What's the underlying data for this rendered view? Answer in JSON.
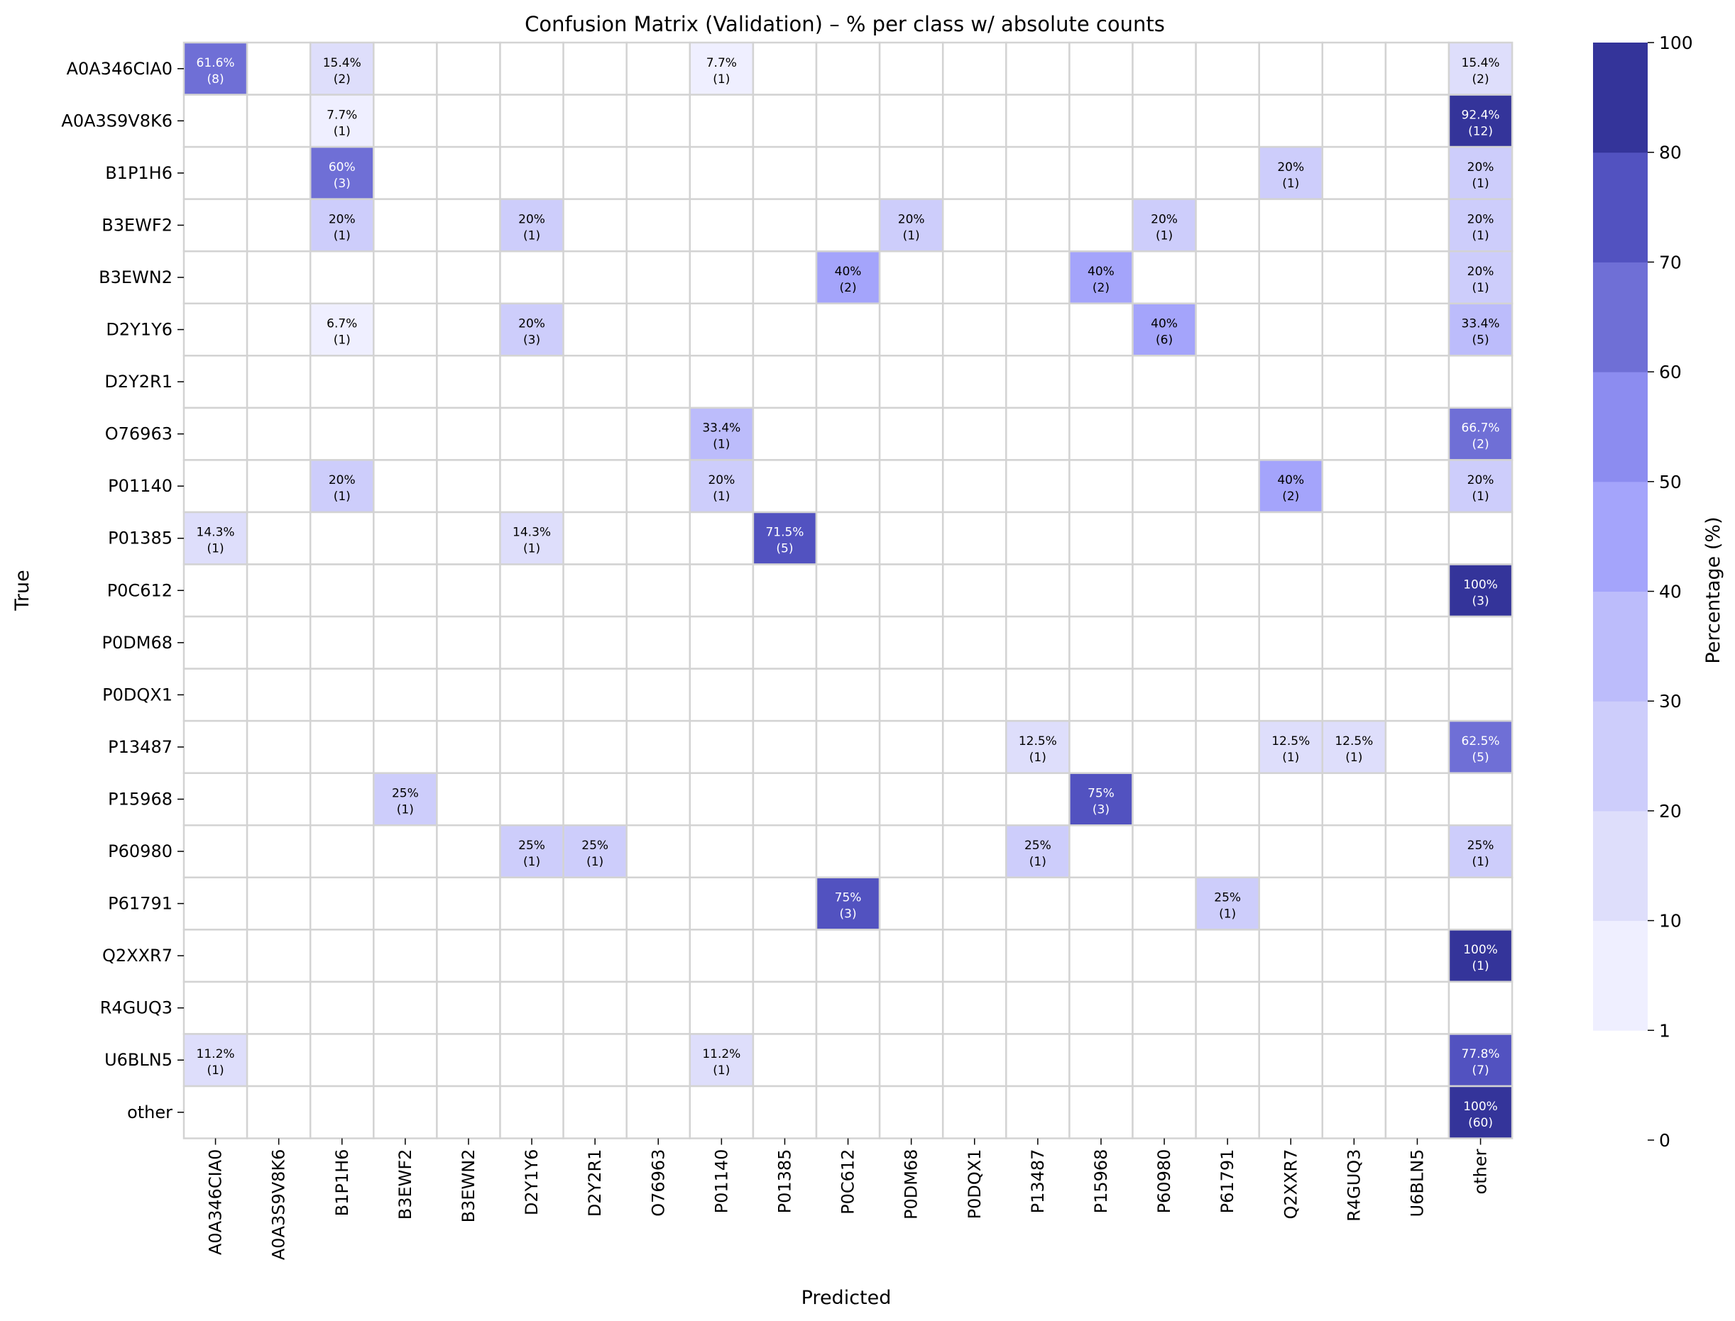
{
  "chart_data": {
    "type": "heatmap",
    "title": "Confusion Matrix (Validation) – % per class w/ absolute counts",
    "xlabel": "Predicted",
    "ylabel": "True",
    "x_categories": [
      "A0A346CIA0",
      "A0A3S9V8K6",
      "B1P1H6",
      "B3EWF2",
      "B3EWN2",
      "D2Y1Y6",
      "D2Y2R1",
      "O76963",
      "P01140",
      "P01385",
      "P0C612",
      "P0DM68",
      "P0DQX1",
      "P13487",
      "P15968",
      "P60980",
      "P61791",
      "Q2XXR7",
      "R4GUQ3",
      "U6BLN5",
      "other"
    ],
    "y_categories": [
      "A0A346CIA0",
      "A0A3S9V8K6",
      "B1P1H6",
      "B3EWF2",
      "B3EWN2",
      "D2Y1Y6",
      "D2Y2R1",
      "O76963",
      "P01140",
      "P01385",
      "P0C612",
      "P0DM68",
      "P0DQX1",
      "P13487",
      "P15968",
      "P60980",
      "P61791",
      "Q2XXR7",
      "R4GUQ3",
      "U6BLN5",
      "other"
    ],
    "cells": [
      {
        "row": "A0A346CIA0",
        "col": "A0A346CIA0",
        "pct": 61.6,
        "pct_label": "61.6%",
        "count_label": "(8)"
      },
      {
        "row": "A0A346CIA0",
        "col": "B1P1H6",
        "pct": 15.4,
        "pct_label": "15.4%",
        "count_label": "(2)"
      },
      {
        "row": "A0A346CIA0",
        "col": "P01140",
        "pct": 7.7,
        "pct_label": "7.7%",
        "count_label": "(1)"
      },
      {
        "row": "A0A346CIA0",
        "col": "other",
        "pct": 15.4,
        "pct_label": "15.4%",
        "count_label": "(2)"
      },
      {
        "row": "A0A3S9V8K6",
        "col": "B1P1H6",
        "pct": 7.7,
        "pct_label": "7.7%",
        "count_label": "(1)"
      },
      {
        "row": "A0A3S9V8K6",
        "col": "other",
        "pct": 92.4,
        "pct_label": "92.4%",
        "count_label": "(12)"
      },
      {
        "row": "B1P1H6",
        "col": "B1P1H6",
        "pct": 60,
        "pct_label": "60%",
        "count_label": "(3)"
      },
      {
        "row": "B1P1H6",
        "col": "Q2XXR7",
        "pct": 20,
        "pct_label": "20%",
        "count_label": "(1)"
      },
      {
        "row": "B1P1H6",
        "col": "other",
        "pct": 20,
        "pct_label": "20%",
        "count_label": "(1)"
      },
      {
        "row": "B3EWF2",
        "col": "B1P1H6",
        "pct": 20,
        "pct_label": "20%",
        "count_label": "(1)"
      },
      {
        "row": "B3EWF2",
        "col": "D2Y1Y6",
        "pct": 20,
        "pct_label": "20%",
        "count_label": "(1)"
      },
      {
        "row": "B3EWF2",
        "col": "P0DM68",
        "pct": 20,
        "pct_label": "20%",
        "count_label": "(1)"
      },
      {
        "row": "B3EWF2",
        "col": "P60980",
        "pct": 20,
        "pct_label": "20%",
        "count_label": "(1)"
      },
      {
        "row": "B3EWF2",
        "col": "other",
        "pct": 20,
        "pct_label": "20%",
        "count_label": "(1)"
      },
      {
        "row": "B3EWN2",
        "col": "P0C612",
        "pct": 40,
        "pct_label": "40%",
        "count_label": "(2)"
      },
      {
        "row": "B3EWN2",
        "col": "P15968",
        "pct": 40,
        "pct_label": "40%",
        "count_label": "(2)"
      },
      {
        "row": "B3EWN2",
        "col": "other",
        "pct": 20,
        "pct_label": "20%",
        "count_label": "(1)"
      },
      {
        "row": "D2Y1Y6",
        "col": "B1P1H6",
        "pct": 6.7,
        "pct_label": "6.7%",
        "count_label": "(1)"
      },
      {
        "row": "D2Y1Y6",
        "col": "D2Y1Y6",
        "pct": 20,
        "pct_label": "20%",
        "count_label": "(3)"
      },
      {
        "row": "D2Y1Y6",
        "col": "P60980",
        "pct": 40,
        "pct_label": "40%",
        "count_label": "(6)"
      },
      {
        "row": "D2Y1Y6",
        "col": "other",
        "pct": 33.4,
        "pct_label": "33.4%",
        "count_label": "(5)"
      },
      {
        "row": "O76963",
        "col": "P01140",
        "pct": 33.4,
        "pct_label": "33.4%",
        "count_label": "(1)"
      },
      {
        "row": "O76963",
        "col": "other",
        "pct": 66.7,
        "pct_label": "66.7%",
        "count_label": "(2)"
      },
      {
        "row": "P01140",
        "col": "B1P1H6",
        "pct": 20,
        "pct_label": "20%",
        "count_label": "(1)"
      },
      {
        "row": "P01140",
        "col": "P01140",
        "pct": 20,
        "pct_label": "20%",
        "count_label": "(1)"
      },
      {
        "row": "P01140",
        "col": "Q2XXR7",
        "pct": 40,
        "pct_label": "40%",
        "count_label": "(2)"
      },
      {
        "row": "P01140",
        "col": "other",
        "pct": 20,
        "pct_label": "20%",
        "count_label": "(1)"
      },
      {
        "row": "P01385",
        "col": "A0A346CIA0",
        "pct": 14.3,
        "pct_label": "14.3%",
        "count_label": "(1)"
      },
      {
        "row": "P01385",
        "col": "D2Y1Y6",
        "pct": 14.3,
        "pct_label": "14.3%",
        "count_label": "(1)"
      },
      {
        "row": "P01385",
        "col": "P01385",
        "pct": 71.5,
        "pct_label": "71.5%",
        "count_label": "(5)"
      },
      {
        "row": "P0C612",
        "col": "other",
        "pct": 100,
        "pct_label": "100%",
        "count_label": "(3)"
      },
      {
        "row": "P13487",
        "col": "P13487",
        "pct": 12.5,
        "pct_label": "12.5%",
        "count_label": "(1)"
      },
      {
        "row": "P13487",
        "col": "Q2XXR7",
        "pct": 12.5,
        "pct_label": "12.5%",
        "count_label": "(1)"
      },
      {
        "row": "P13487",
        "col": "R4GUQ3",
        "pct": 12.5,
        "pct_label": "12.5%",
        "count_label": "(1)"
      },
      {
        "row": "P13487",
        "col": "other",
        "pct": 62.5,
        "pct_label": "62.5%",
        "count_label": "(5)"
      },
      {
        "row": "P15968",
        "col": "B3EWF2",
        "pct": 25,
        "pct_label": "25%",
        "count_label": "(1)"
      },
      {
        "row": "P15968",
        "col": "P15968",
        "pct": 75,
        "pct_label": "75%",
        "count_label": "(3)"
      },
      {
        "row": "P60980",
        "col": "D2Y1Y6",
        "pct": 25,
        "pct_label": "25%",
        "count_label": "(1)"
      },
      {
        "row": "P60980",
        "col": "D2Y2R1",
        "pct": 25,
        "pct_label": "25%",
        "count_label": "(1)"
      },
      {
        "row": "P60980",
        "col": "P13487",
        "pct": 25,
        "pct_label": "25%",
        "count_label": "(1)"
      },
      {
        "row": "P60980",
        "col": "other",
        "pct": 25,
        "pct_label": "25%",
        "count_label": "(1)"
      },
      {
        "row": "P61791",
        "col": "P0C612",
        "pct": 75,
        "pct_label": "75%",
        "count_label": "(3)"
      },
      {
        "row": "P61791",
        "col": "P61791",
        "pct": 25,
        "pct_label": "25%",
        "count_label": "(1)"
      },
      {
        "row": "Q2XXR7",
        "col": "other",
        "pct": 100,
        "pct_label": "100%",
        "count_label": "(1)"
      },
      {
        "row": "U6BLN5",
        "col": "A0A346CIA0",
        "pct": 11.2,
        "pct_label": "11.2%",
        "count_label": "(1)"
      },
      {
        "row": "U6BLN5",
        "col": "P01140",
        "pct": 11.2,
        "pct_label": "11.2%",
        "count_label": "(1)"
      },
      {
        "row": "U6BLN5",
        "col": "other",
        "pct": 77.8,
        "pct_label": "77.8%",
        "count_label": "(7)"
      },
      {
        "row": "other",
        "col": "other",
        "pct": 100,
        "pct_label": "100%",
        "count_label": "(60)"
      }
    ],
    "colorbar": {
      "label": "Percentage (%)",
      "boundaries": [
        0,
        1,
        10,
        20,
        30,
        40,
        50,
        60,
        70,
        80,
        100
      ],
      "tick_labels": [
        "0",
        "1",
        "10",
        "20",
        "30",
        "40",
        "50",
        "60",
        "70",
        "80",
        "100"
      ],
      "colors": [
        "#ffffff",
        "#efefff",
        "#dedefb",
        "#cdcdfb",
        "#bcbcfb",
        "#a4a4fb",
        "#8c8cf0",
        "#6f6fd6",
        "#5252c0",
        "#34349a"
      ]
    },
    "empty_cell_color": "#ffffff",
    "grid_line_color": "#d3d3d3",
    "text_dark": "#000000",
    "text_light": "#ffffff"
  }
}
